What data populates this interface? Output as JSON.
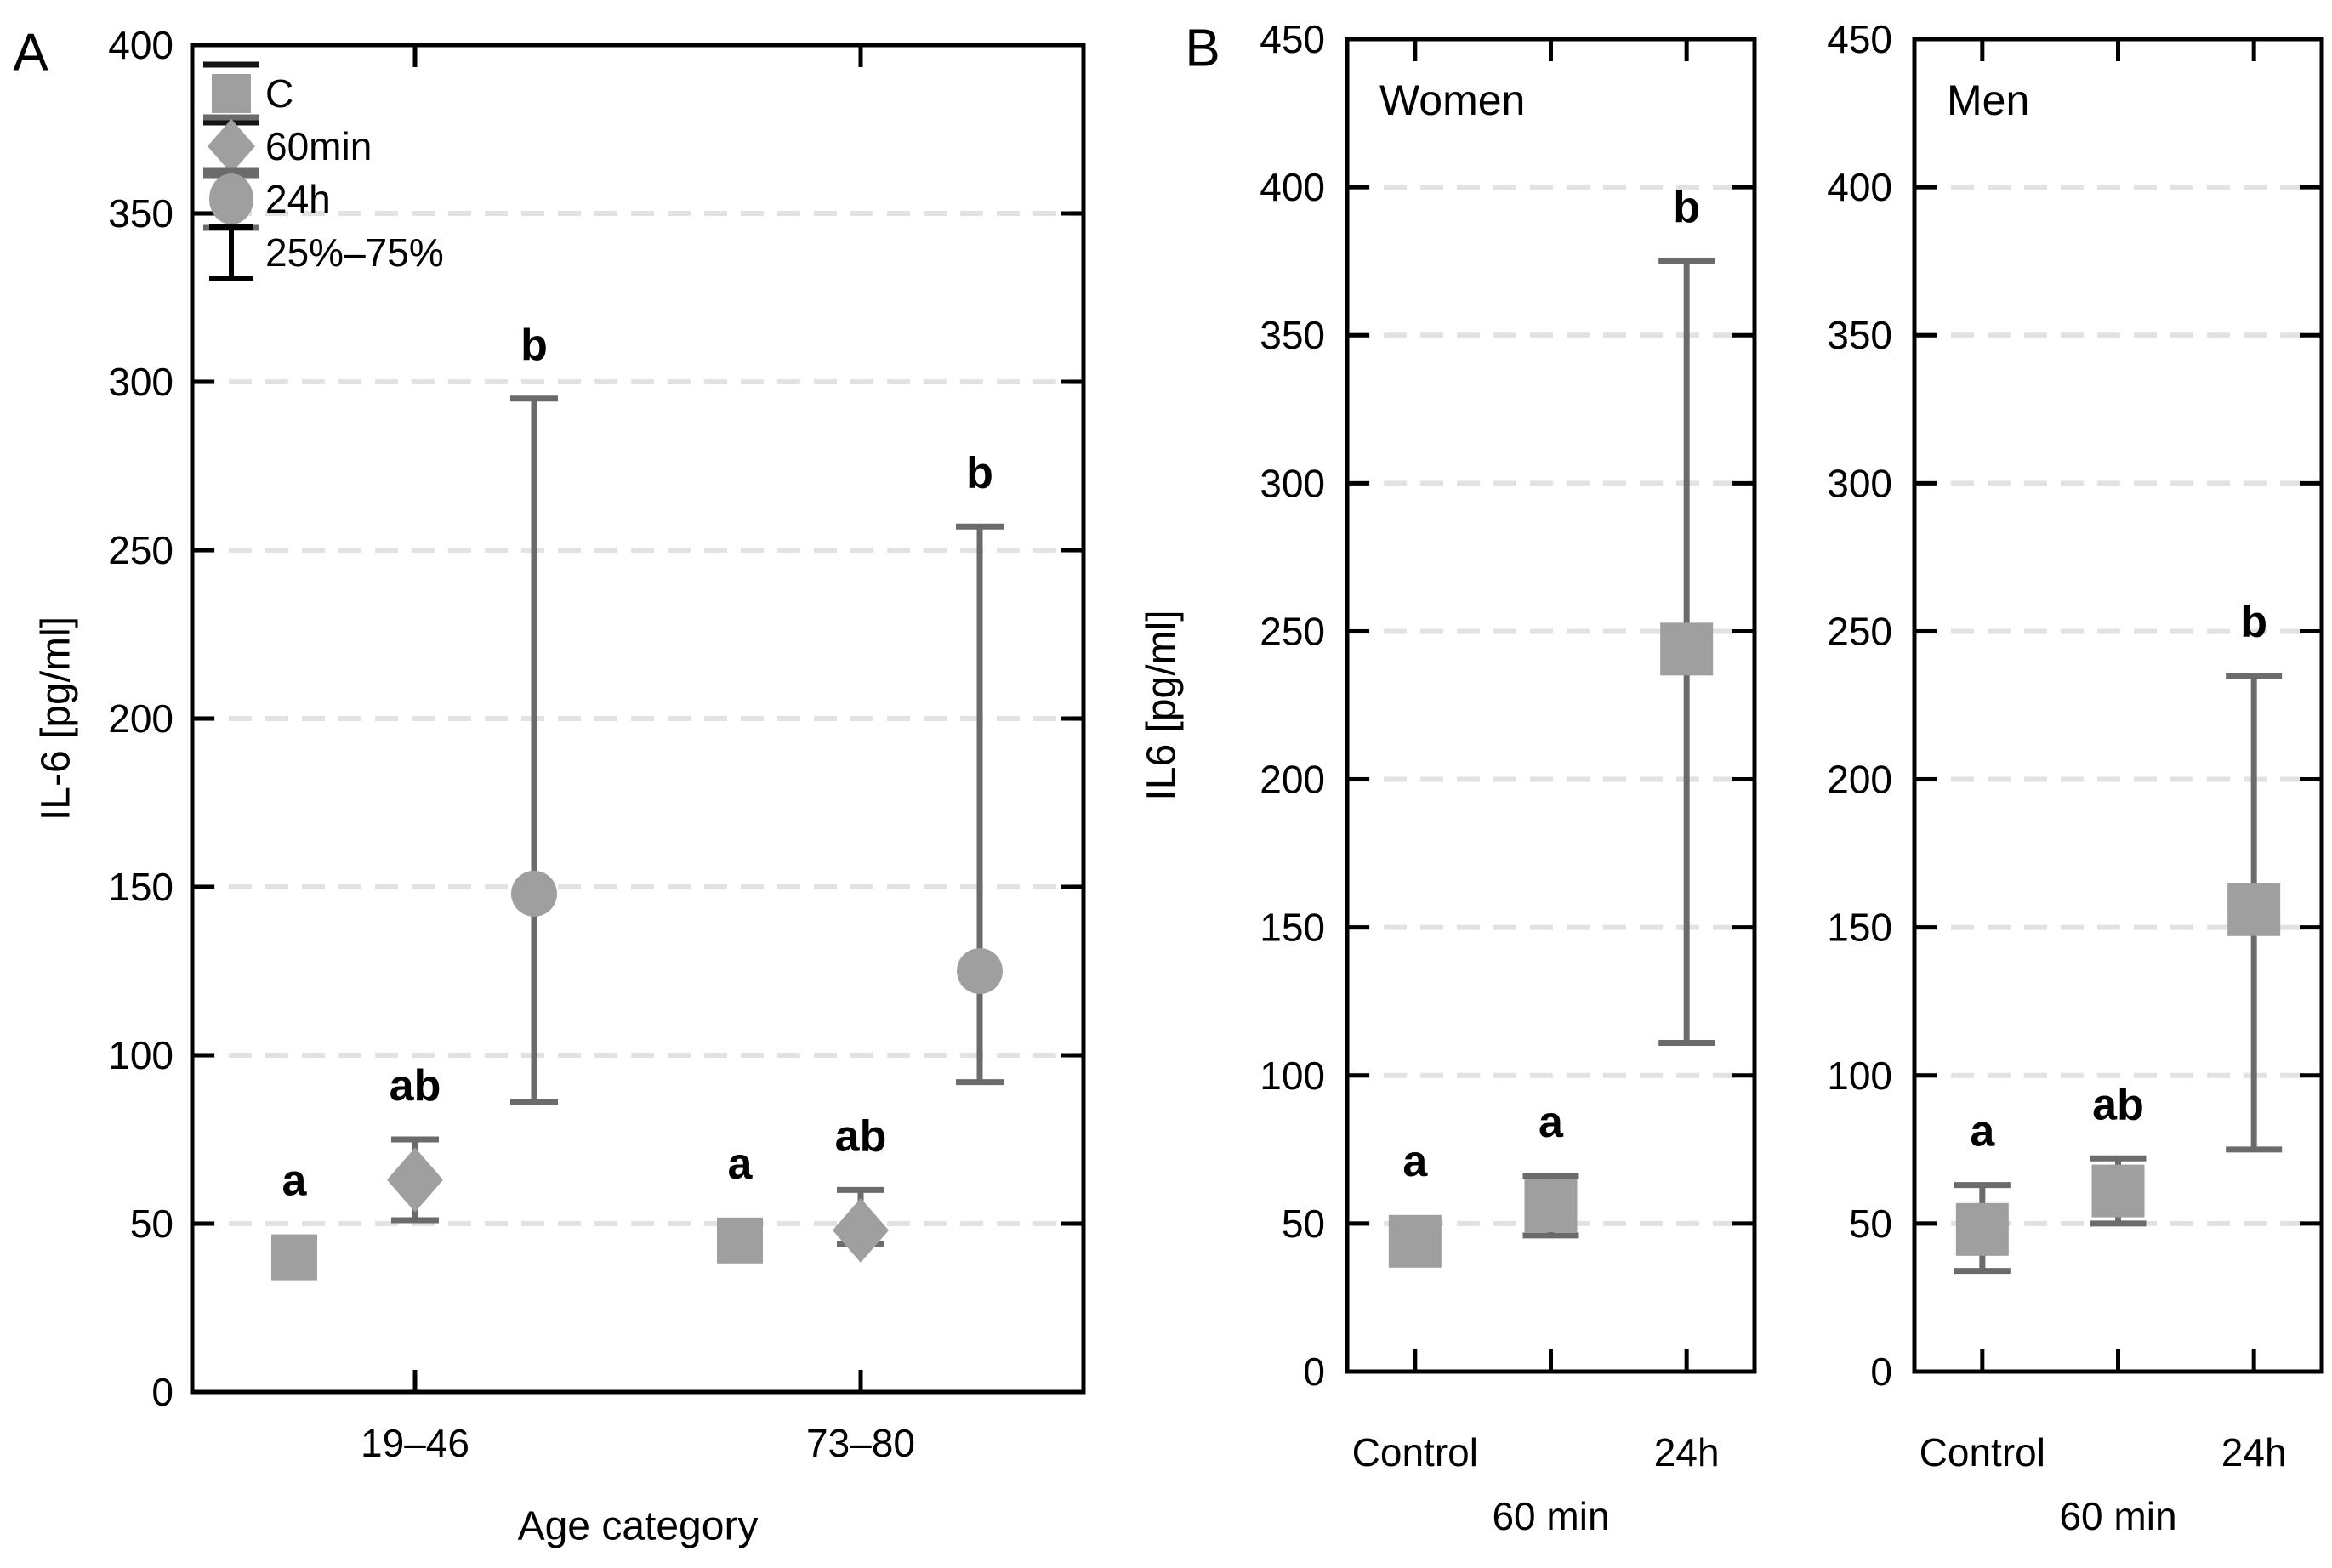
{
  "page": {
    "background": "#ffffff"
  },
  "colors": {
    "marker_fill": "#9f9f9f",
    "whisker": "#6b6b6b",
    "grid": "#e2e2e2",
    "axis": "#000000",
    "text": "#000000"
  },
  "chart_data": [
    {
      "id": "panel-a",
      "type": "scatter",
      "style": "median markers with 25%-75% whiskers",
      "panel_letter": "A",
      "ylabel": "IL-6 [pg/ml]",
      "xlabel": "Age category",
      "ylim": [
        0,
        400
      ],
      "ytick_interval": 50,
      "grid": "horizontal dashed every 50",
      "legend_position": "top-left inside",
      "legend": [
        {
          "symbol": "square",
          "label": "C"
        },
        {
          "symbol": "diamond",
          "label": "60min"
        },
        {
          "symbol": "circle",
          "label": "24h"
        },
        {
          "symbol": "error-bar",
          "label": "25%–75%"
        }
      ],
      "categories": [
        "19–46",
        "73–80"
      ],
      "series": [
        {
          "name": "C",
          "symbol": "square",
          "values": [
            {
              "category": "19–46",
              "median": 40,
              "q25": null,
              "q75": null,
              "sig": "a"
            },
            {
              "category": "73–80",
              "median": 45,
              "q25": null,
              "q75": null,
              "sig": "a"
            }
          ]
        },
        {
          "name": "60min",
          "symbol": "diamond",
          "values": [
            {
              "category": "19–46",
              "median": 63,
              "q25": 51,
              "q75": 75,
              "sig": "ab"
            },
            {
              "category": "73–80",
              "median": 48,
              "q25": 44,
              "q75": 60,
              "sig": "ab"
            }
          ]
        },
        {
          "name": "24h",
          "symbol": "circle",
          "values": [
            {
              "category": "19–46",
              "median": 148,
              "q25": 86,
              "q75": 295,
              "sig": "b"
            },
            {
              "category": "73–80",
              "median": 125,
              "q25": 92,
              "q75": 257,
              "sig": "b"
            }
          ]
        }
      ]
    },
    {
      "id": "panel-b-women",
      "type": "scatter",
      "style": "median markers with 25%-75% whiskers",
      "panel_letter": "B",
      "title": "Women",
      "ylabel": "IL6 [pg/ml]",
      "ylim": [
        0,
        450
      ],
      "ytick_interval": 50,
      "grid": "horizontal dashed every 50",
      "categories": [
        "Control",
        "60 min",
        "24h"
      ],
      "x_label_rows": [
        [
          "Control",
          "24h"
        ],
        [
          "60 min"
        ]
      ],
      "points": [
        {
          "category": "Control",
          "median": 44,
          "q25": null,
          "q75": null,
          "sig": "a"
        },
        {
          "category": "60 min",
          "median": 56,
          "q25": 46,
          "q75": 66,
          "sig": "a"
        },
        {
          "category": "24h",
          "median": 244,
          "q25": 111,
          "q75": 375,
          "sig": "b"
        }
      ]
    },
    {
      "id": "panel-b-men",
      "type": "scatter",
      "style": "median markers with 25%-75% whiskers",
      "title": "Men",
      "ylim": [
        0,
        450
      ],
      "ytick_interval": 50,
      "grid": "horizontal dashed every 50",
      "categories": [
        "Control",
        "60 min",
        "24h"
      ],
      "x_label_rows": [
        [
          "Control",
          "24h"
        ],
        [
          "60 min"
        ]
      ],
      "points": [
        {
          "category": "Control",
          "median": 48,
          "q25": 34,
          "q75": 63,
          "sig": "a"
        },
        {
          "category": "60 min",
          "median": 61,
          "q25": 50,
          "q75": 72,
          "sig": "ab"
        },
        {
          "category": "24h",
          "median": 156,
          "q25": 75,
          "q75": 235,
          "sig": "b"
        }
      ]
    }
  ]
}
